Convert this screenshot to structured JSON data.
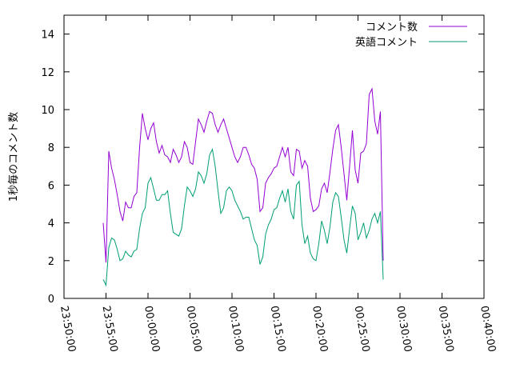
{
  "chart_data": {
    "type": "line",
    "title": "",
    "xlabel": "",
    "ylabel": "1秒毎のコメント数",
    "xlim": [
      "23:50:00",
      "00:40:00"
    ],
    "ylim": [
      0,
      15
    ],
    "x_ticks": [
      "23:50:00",
      "23:55:00",
      "00:00:00",
      "00:05:00",
      "00:10:00",
      "00:15:00",
      "00:20:00",
      "00:25:00",
      "00:30:00",
      "00:35:00",
      "00:40:00"
    ],
    "y_ticks": [
      "0",
      "2",
      "4",
      "6",
      "8",
      "10",
      "12",
      "14"
    ],
    "grid": false,
    "legend_position": "top-right",
    "series": [
      {
        "name": "コメント数",
        "color": "#9400d3",
        "points": [
          [
            "23:54:40",
            4.0
          ],
          [
            "23:55:00",
            1.9
          ],
          [
            "23:55:20",
            7.8
          ],
          [
            "23:55:40",
            6.9
          ],
          [
            "23:56:00",
            6.3
          ],
          [
            "23:56:20",
            5.5
          ],
          [
            "23:56:40",
            4.6
          ],
          [
            "23:57:00",
            4.1
          ],
          [
            "23:57:20",
            5.1
          ],
          [
            "23:57:40",
            4.8
          ],
          [
            "23:58:00",
            4.8
          ],
          [
            "23:58:20",
            5.4
          ],
          [
            "23:58:40",
            5.6
          ],
          [
            "23:59:00",
            8.0
          ],
          [
            "23:59:20",
            9.8
          ],
          [
            "23:59:40",
            9.0
          ],
          [
            "00:00:00",
            8.4
          ],
          [
            "00:00:20",
            9.0
          ],
          [
            "00:00:40",
            9.3
          ],
          [
            "00:01:00",
            8.3
          ],
          [
            "00:01:20",
            7.7
          ],
          [
            "00:01:40",
            8.1
          ],
          [
            "00:02:00",
            7.6
          ],
          [
            "00:02:20",
            7.5
          ],
          [
            "00:02:40",
            7.2
          ],
          [
            "00:03:00",
            7.9
          ],
          [
            "00:03:20",
            7.6
          ],
          [
            "00:03:40",
            7.2
          ],
          [
            "00:04:00",
            7.5
          ],
          [
            "00:04:20",
            8.3
          ],
          [
            "00:04:40",
            8.0
          ],
          [
            "00:05:00",
            7.2
          ],
          [
            "00:05:20",
            7.1
          ],
          [
            "00:05:40",
            8.3
          ],
          [
            "00:06:00",
            9.5
          ],
          [
            "00:06:20",
            9.2
          ],
          [
            "00:06:40",
            8.8
          ],
          [
            "00:07:00",
            9.4
          ],
          [
            "00:07:20",
            9.9
          ],
          [
            "00:07:40",
            9.8
          ],
          [
            "00:08:00",
            9.2
          ],
          [
            "00:08:20",
            8.8
          ],
          [
            "00:08:40",
            9.2
          ],
          [
            "00:09:00",
            9.5
          ],
          [
            "00:09:20",
            9.0
          ],
          [
            "00:09:40",
            8.5
          ],
          [
            "00:10:00",
            8.0
          ],
          [
            "00:10:20",
            7.5
          ],
          [
            "00:10:40",
            7.2
          ],
          [
            "00:11:00",
            7.5
          ],
          [
            "00:11:20",
            8.0
          ],
          [
            "00:11:40",
            8.0
          ],
          [
            "00:12:00",
            7.6
          ],
          [
            "00:12:20",
            7.1
          ],
          [
            "00:12:40",
            6.9
          ],
          [
            "00:13:00",
            6.3
          ],
          [
            "00:13:20",
            4.6
          ],
          [
            "00:13:40",
            4.8
          ],
          [
            "00:14:00",
            6.1
          ],
          [
            "00:14:20",
            6.4
          ],
          [
            "00:14:40",
            6.6
          ],
          [
            "00:15:00",
            6.9
          ],
          [
            "00:15:20",
            7.0
          ],
          [
            "00:15:40",
            7.5
          ],
          [
            "00:16:00",
            8.0
          ],
          [
            "00:16:20",
            7.5
          ],
          [
            "00:16:40",
            8.0
          ],
          [
            "00:17:00",
            6.7
          ],
          [
            "00:17:20",
            6.5
          ],
          [
            "00:17:40",
            7.9
          ],
          [
            "00:18:00",
            7.8
          ],
          [
            "00:18:20",
            6.9
          ],
          [
            "00:18:40",
            7.3
          ],
          [
            "00:19:00",
            7.0
          ],
          [
            "00:19:20",
            5.3
          ],
          [
            "00:19:40",
            4.6
          ],
          [
            "00:20:00",
            4.7
          ],
          [
            "00:20:20",
            4.9
          ],
          [
            "00:20:40",
            5.8
          ],
          [
            "00:21:00",
            6.1
          ],
          [
            "00:21:20",
            5.6
          ],
          [
            "00:21:40",
            6.7
          ],
          [
            "00:22:00",
            7.9
          ],
          [
            "00:22:20",
            8.9
          ],
          [
            "00:22:40",
            9.2
          ],
          [
            "00:23:00",
            8.0
          ],
          [
            "00:23:20",
            6.6
          ],
          [
            "00:23:40",
            5.2
          ],
          [
            "00:24:00",
            7.0
          ],
          [
            "00:24:20",
            8.9
          ],
          [
            "00:24:40",
            6.8
          ],
          [
            "00:25:00",
            6.1
          ],
          [
            "00:25:20",
            7.7
          ],
          [
            "00:25:40",
            7.8
          ],
          [
            "00:26:00",
            8.2
          ],
          [
            "00:26:20",
            10.8
          ],
          [
            "00:26:40",
            11.1
          ],
          [
            "00:27:00",
            9.4
          ],
          [
            "00:27:20",
            8.7
          ],
          [
            "00:27:40",
            9.9
          ],
          [
            "00:28:00",
            2.0
          ]
        ]
      },
      {
        "name": "英語コメント",
        "color": "#009e73",
        "points": [
          [
            "23:54:40",
            1.0
          ],
          [
            "23:55:00",
            0.7
          ],
          [
            "23:55:20",
            2.7
          ],
          [
            "23:55:40",
            3.2
          ],
          [
            "23:56:00",
            3.1
          ],
          [
            "23:56:20",
            2.6
          ],
          [
            "23:56:40",
            2.0
          ],
          [
            "23:57:00",
            2.1
          ],
          [
            "23:57:20",
            2.5
          ],
          [
            "23:57:40",
            2.3
          ],
          [
            "23:58:00",
            2.2
          ],
          [
            "23:58:20",
            2.5
          ],
          [
            "23:58:40",
            2.6
          ],
          [
            "23:59:00",
            3.7
          ],
          [
            "23:59:20",
            4.5
          ],
          [
            "23:59:40",
            4.8
          ],
          [
            "00:00:00",
            6.1
          ],
          [
            "00:00:20",
            6.4
          ],
          [
            "00:00:40",
            5.8
          ],
          [
            "00:01:00",
            5.2
          ],
          [
            "00:01:20",
            5.2
          ],
          [
            "00:01:40",
            5.5
          ],
          [
            "00:02:00",
            5.5
          ],
          [
            "00:02:20",
            5.7
          ],
          [
            "00:02:40",
            4.5
          ],
          [
            "00:03:00",
            3.5
          ],
          [
            "00:03:20",
            3.4
          ],
          [
            "00:03:40",
            3.3
          ],
          [
            "00:04:00",
            3.7
          ],
          [
            "00:04:20",
            4.9
          ],
          [
            "00:04:40",
            5.9
          ],
          [
            "00:05:00",
            5.7
          ],
          [
            "00:05:20",
            5.4
          ],
          [
            "00:05:40",
            5.8
          ],
          [
            "00:06:00",
            6.7
          ],
          [
            "00:06:20",
            6.5
          ],
          [
            "00:06:40",
            6.1
          ],
          [
            "00:07:00",
            6.6
          ],
          [
            "00:07:20",
            7.6
          ],
          [
            "00:07:40",
            7.9
          ],
          [
            "00:08:00",
            7.0
          ],
          [
            "00:08:20",
            5.7
          ],
          [
            "00:08:40",
            4.5
          ],
          [
            "00:09:00",
            4.8
          ],
          [
            "00:09:20",
            5.7
          ],
          [
            "00:09:40",
            5.9
          ],
          [
            "00:10:00",
            5.7
          ],
          [
            "00:10:20",
            5.2
          ],
          [
            "00:10:40",
            4.9
          ],
          [
            "00:11:00",
            4.6
          ],
          [
            "00:11:20",
            4.2
          ],
          [
            "00:11:40",
            4.3
          ],
          [
            "00:12:00",
            4.3
          ],
          [
            "00:12:20",
            3.7
          ],
          [
            "00:12:40",
            3.1
          ],
          [
            "00:13:00",
            2.8
          ],
          [
            "00:13:20",
            1.8
          ],
          [
            "00:13:40",
            2.2
          ],
          [
            "00:14:00",
            3.4
          ],
          [
            "00:14:20",
            3.9
          ],
          [
            "00:14:40",
            4.2
          ],
          [
            "00:15:00",
            4.7
          ],
          [
            "00:15:20",
            4.8
          ],
          [
            "00:15:40",
            5.3
          ],
          [
            "00:16:00",
            5.7
          ],
          [
            "00:16:20",
            5.1
          ],
          [
            "00:16:40",
            5.8
          ],
          [
            "00:17:00",
            4.6
          ],
          [
            "00:17:20",
            4.2
          ],
          [
            "00:17:40",
            6.0
          ],
          [
            "00:18:00",
            6.2
          ],
          [
            "00:18:20",
            3.9
          ],
          [
            "00:18:40",
            2.9
          ],
          [
            "00:19:00",
            3.3
          ],
          [
            "00:19:20",
            2.4
          ],
          [
            "00:19:40",
            2.1
          ],
          [
            "00:20:00",
            2.0
          ],
          [
            "00:20:20",
            2.9
          ],
          [
            "00:20:40",
            4.1
          ],
          [
            "00:21:00",
            3.6
          ],
          [
            "00:21:20",
            2.9
          ],
          [
            "00:21:40",
            3.8
          ],
          [
            "00:22:00",
            5.1
          ],
          [
            "00:22:20",
            5.6
          ],
          [
            "00:22:40",
            5.4
          ],
          [
            "00:23:00",
            4.3
          ],
          [
            "00:23:20",
            3.1
          ],
          [
            "00:23:40",
            2.4
          ],
          [
            "00:24:00",
            3.7
          ],
          [
            "00:24:20",
            4.9
          ],
          [
            "00:24:40",
            4.5
          ],
          [
            "00:25:00",
            3.1
          ],
          [
            "00:25:20",
            3.5
          ],
          [
            "00:25:40",
            4.0
          ],
          [
            "00:26:00",
            3.2
          ],
          [
            "00:26:20",
            3.6
          ],
          [
            "00:26:40",
            4.2
          ],
          [
            "00:27:00",
            4.5
          ],
          [
            "00:27:20",
            4.0
          ],
          [
            "00:27:40",
            4.6
          ],
          [
            "00:28:00",
            1.0
          ]
        ]
      }
    ]
  }
}
